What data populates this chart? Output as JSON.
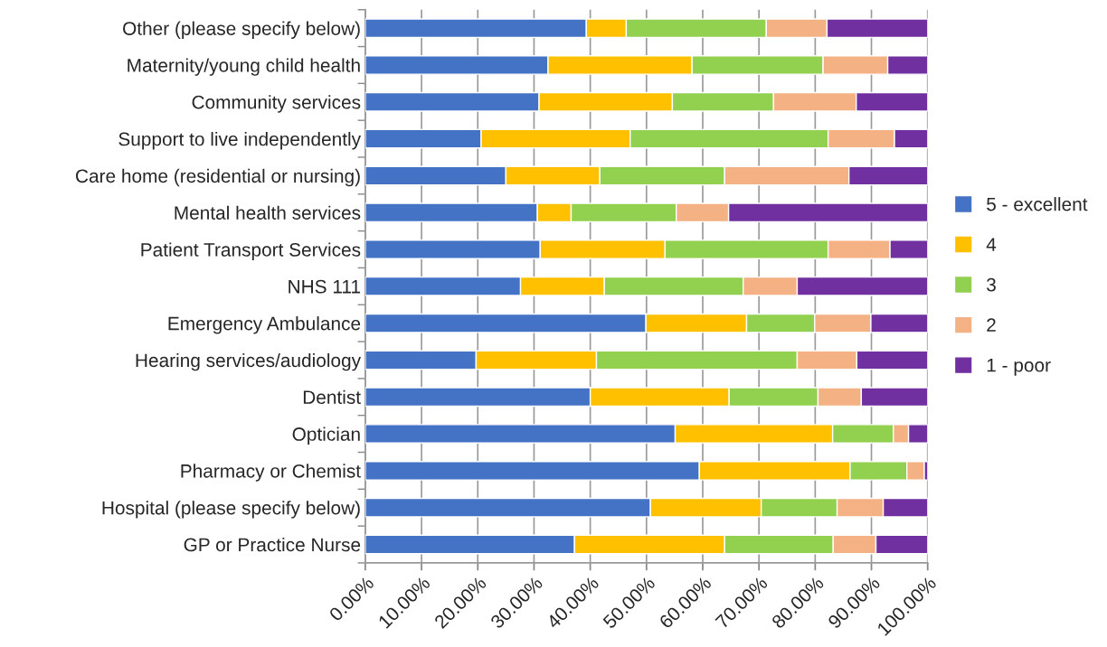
{
  "chart_data": {
    "type": "bar",
    "orientation": "horizontal",
    "stacked": true,
    "categories": [
      "Other (please specify below)",
      "Maternity/young child health",
      "Community services",
      "Support to live independently",
      "Care home (residential or nursing)",
      "Mental health services",
      "Patient Transport Services",
      "NHS 111",
      "Emergency Ambulance",
      "Hearing services/audiology",
      "Dentist",
      "Optician",
      "Pharmacy or Chemist",
      "Hospital (please specify below)",
      "GP or Practice Nurse"
    ],
    "series": [
      {
        "name": "5 - excellent",
        "color": "#4472c4",
        "values": [
          39.3,
          32.5,
          30.9,
          20.6,
          25.0,
          30.6,
          31.1,
          27.6,
          49.9,
          19.7,
          40.0,
          55.1,
          59.4,
          50.7,
          37.2
        ]
      },
      {
        "name": "4",
        "color": "#ffc000",
        "values": [
          7.1,
          25.6,
          23.7,
          26.5,
          16.7,
          6.0,
          22.2,
          14.9,
          17.9,
          21.4,
          24.7,
          28.0,
          26.8,
          19.7,
          26.7
        ]
      },
      {
        "name": "3",
        "color": "#92d050",
        "values": [
          24.9,
          23.3,
          18.0,
          35.2,
          22.2,
          18.7,
          29.0,
          24.7,
          12.1,
          35.7,
          15.8,
          10.8,
          10.1,
          13.5,
          19.3
        ]
      },
      {
        "name": "2",
        "color": "#f4b183",
        "values": [
          10.8,
          11.5,
          14.7,
          11.8,
          22.1,
          9.3,
          11.0,
          9.6,
          10.0,
          10.6,
          7.7,
          2.7,
          3.1,
          8.2,
          7.6
        ]
      },
      {
        "name": "1 - poor",
        "color": "#7030a0",
        "values": [
          17.9,
          7.1,
          12.7,
          5.9,
          14.0,
          35.4,
          6.7,
          23.2,
          10.1,
          12.6,
          11.8,
          3.4,
          0.6,
          7.9,
          9.2
        ]
      }
    ],
    "xlim": [
      0,
      100
    ],
    "xticks": [
      {
        "value": 0,
        "label": "0.00%"
      },
      {
        "value": 10,
        "label": "10.00%"
      },
      {
        "value": 20,
        "label": "20.00%"
      },
      {
        "value": 30,
        "label": "30.00%"
      },
      {
        "value": 40,
        "label": "40.00%"
      },
      {
        "value": 50,
        "label": "50.00%"
      },
      {
        "value": 60,
        "label": "60.00%"
      },
      {
        "value": 70,
        "label": "70.00%"
      },
      {
        "value": 80,
        "label": "80.00%"
      },
      {
        "value": 90,
        "label": "90.00%"
      },
      {
        "value": 100,
        "label": "100.00%"
      }
    ],
    "grid": "x",
    "legend": "right"
  }
}
